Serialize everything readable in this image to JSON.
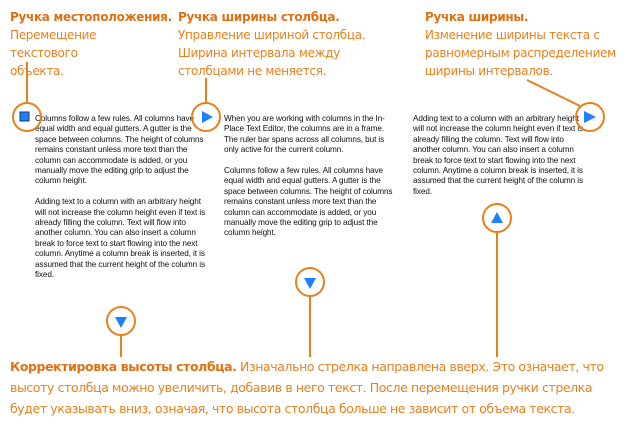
{
  "labels": {
    "location": {
      "title": "Ручка местоположения.",
      "text": "Перемещение текстового объекта."
    },
    "column_width": {
      "title": "Ручка ширины столбца.",
      "text": "Управление шириной столбца. Ширина интервала между столбцами не меняется."
    },
    "width": {
      "title": "Ручка ширины.",
      "text": "Изменение ширины текста с равномерным распределением ширины интервалов."
    }
  },
  "columns": [
    {
      "paragraphs": [
        "Columns follow a few rules. All columns have equal width and equal gutters. A gutter is the space between columns. The height of columns remains constant unless more text than the column can accommodate is added, or you manually move the editing grip to adjust the column height.",
        "Adding text to a column with an arbitrary height will not increase the column height even if text is already filling the column. Text will flow into another column. You can also insert a column break to force text to start flowing into the next column. Anytime a column break is inserted, it is assumed that the current height of the column is fixed."
      ]
    },
    {
      "paragraphs": [
        "When you are working with columns in the In-Place Text Editor, the columns are in a frame. The ruler bar spans across all columns, but is only active for the current column.",
        "Columns follow a few rules. All columns have equal width and equal gutters. A gutter is the space between columns. The height of columns remains constant unless more text than the column can accommodate is added, or you manually move the editing grip to adjust the column height."
      ]
    },
    {
      "paragraphs": [
        "Adding text to a column with an arbitrary height will not increase the column height even if text is already filling the column. Text will flow into another column. You can also insert a column break to force text to start flowing into the next column. Anytime a column break is inserted, it is assumed that the current height of the column is fixed."
      ]
    }
  ],
  "bottom": {
    "title": "Корректировка высоты столбца.",
    "text": "Изначально стрелка направлена вверх. Это означает, что высоту столбца можно увеличить, добавив в него текст. После перемещения ручки стрелка будет указывать вниз, означая, что высота столбца больше не зависит от объема текста."
  },
  "colors": {
    "callout": "#E8801E",
    "grip": "#1E7FFF"
  },
  "icons": [
    "location-grip-icon",
    "column-width-grip-icon",
    "width-grip-icon",
    "column-height-grip-down-icon",
    "column-height-grip-up-icon"
  ]
}
